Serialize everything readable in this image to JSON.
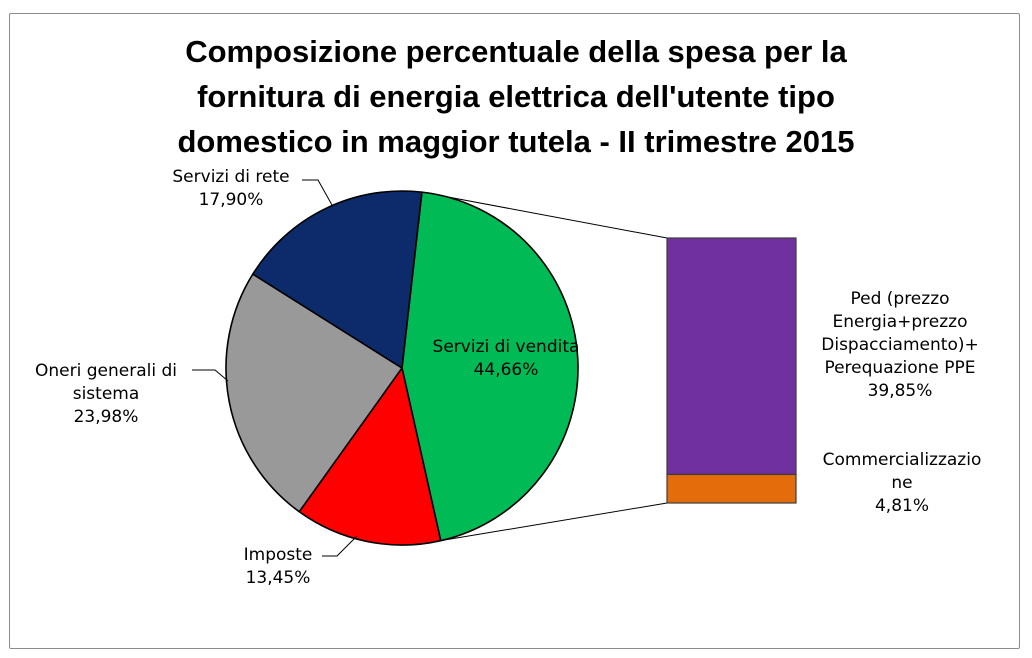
{
  "chart_data": {
    "type": "bar-of-pie",
    "title_lines": [
      "Composizione percentuale della spesa per la",
      "fornitura di energia elettrica dell'utente tipo",
      "domestico in maggior tutela - II trimestre 2015"
    ],
    "pie": [
      {
        "key": "vendita",
        "label_lines": [
          "Servizi di vendita"
        ],
        "value_text": "44,66%",
        "value": 44.66,
        "color": "#00BA55"
      },
      {
        "key": "imposte",
        "label_lines": [
          "Imposte"
        ],
        "value_text": "13,45%",
        "value": 13.45,
        "color": "#FF0000"
      },
      {
        "key": "oneri",
        "label_lines": [
          "Oneri generali di",
          "sistema"
        ],
        "value_text": "23,98%",
        "value": 23.98,
        "color": "#999999"
      },
      {
        "key": "rete",
        "label_lines": [
          "Servizi di rete"
        ],
        "value_text": "17,90%",
        "value": 17.9,
        "color": "#0D2B6B"
      }
    ],
    "bar": [
      {
        "key": "ped",
        "label_lines": [
          "Ped (prezzo",
          "Energia+prezzo",
          "Dispacciamento)+",
          "Perequazione PPE"
        ],
        "value_text": "39,85%",
        "value": 39.85,
        "color": "#7030A0"
      },
      {
        "key": "comm",
        "label_lines": [
          "Commercializzazio",
          "ne"
        ],
        "value_text": "4,81%",
        "value": 4.81,
        "color": "#E46C0A"
      }
    ]
  }
}
